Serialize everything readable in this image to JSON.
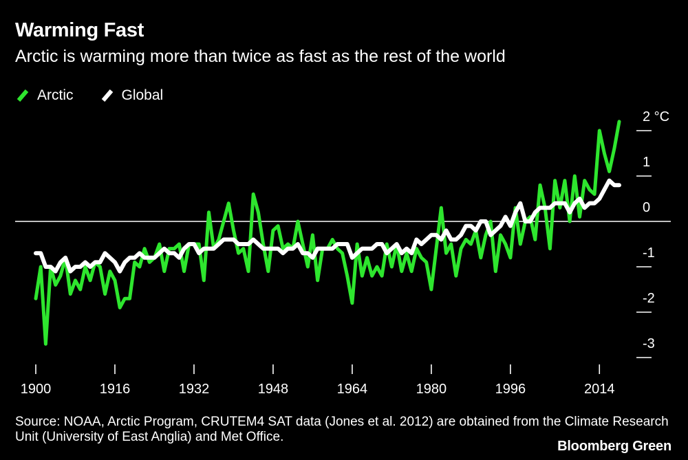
{
  "header": {
    "title": "Warming Fast",
    "subtitle": "Arctic is warming more than twice as fast as the rest of the world"
  },
  "legend": {
    "items": [
      {
        "label": "Arctic",
        "color": "#2ee62e"
      },
      {
        "label": "Global",
        "color": "#ffffff"
      }
    ]
  },
  "footer": {
    "source": "Source: NOAA, Arctic Program, CRUTEM4 SAT data (Jones et al. 2012) are obtained from the Climate Research Unit (University of East Anglia) and Met Office.",
    "brand": "Bloomberg Green"
  },
  "chart_data": {
    "type": "line",
    "title": "Warming Fast",
    "subtitle": "Arctic is warming more than twice as fast as the rest of the world",
    "xlim": [
      1900,
      2018
    ],
    "ylim": [
      -3,
      2
    ],
    "x_ticks": [
      {
        "value": 1900,
        "label": "1900"
      },
      {
        "value": 1916,
        "label": "1916"
      },
      {
        "value": 1932,
        "label": "1932"
      },
      {
        "value": 1948,
        "label": "1948"
      },
      {
        "value": 1964,
        "label": "1964"
      },
      {
        "value": 1980,
        "label": "1980"
      },
      {
        "value": 1996,
        "label": "1996"
      },
      {
        "value": 2014,
        "label": "2014"
      }
    ],
    "y_ticks": [
      {
        "value": 2,
        "label": "2 °C"
      },
      {
        "value": 1,
        "label": "1"
      },
      {
        "value": 0,
        "label": "0"
      },
      {
        "value": -1,
        "label": "-1"
      },
      {
        "value": -2,
        "label": "-2"
      },
      {
        "value": -3,
        "label": "-3"
      }
    ],
    "zero_line": 0,
    "legend_position": "top-left",
    "grid": false,
    "series": [
      {
        "name": "Arctic",
        "color": "#2ee62e",
        "x": [
          1900,
          1901,
          1902,
          1903,
          1904,
          1905,
          1906,
          1907,
          1908,
          1909,
          1910,
          1911,
          1912,
          1913,
          1914,
          1915,
          1916,
          1917,
          1918,
          1919,
          1920,
          1921,
          1922,
          1923,
          1924,
          1925,
          1926,
          1927,
          1928,
          1929,
          1930,
          1931,
          1932,
          1933,
          1934,
          1935,
          1936,
          1937,
          1938,
          1939,
          1940,
          1941,
          1942,
          1943,
          1944,
          1945,
          1946,
          1947,
          1948,
          1949,
          1950,
          1951,
          1952,
          1953,
          1954,
          1955,
          1956,
          1957,
          1958,
          1959,
          1960,
          1961,
          1962,
          1963,
          1964,
          1965,
          1966,
          1967,
          1968,
          1969,
          1970,
          1971,
          1972,
          1973,
          1974,
          1975,
          1976,
          1977,
          1978,
          1979,
          1980,
          1981,
          1982,
          1983,
          1984,
          1985,
          1986,
          1987,
          1988,
          1989,
          1990,
          1991,
          1992,
          1993,
          1994,
          1995,
          1996,
          1997,
          1998,
          1999,
          2000,
          2001,
          2002,
          2003,
          2004,
          2005,
          2006,
          2007,
          2008,
          2009,
          2010,
          2011,
          2012,
          2013,
          2014,
          2015,
          2016,
          2017,
          2018
        ],
        "values": [
          -1.7,
          -1.0,
          -2.7,
          -1.0,
          -1.4,
          -1.2,
          -0.8,
          -1.6,
          -1.3,
          -1.5,
          -1.0,
          -1.3,
          -0.9,
          -1.0,
          -1.6,
          -1.1,
          -1.3,
          -1.9,
          -1.7,
          -1.7,
          -0.9,
          -1.0,
          -0.6,
          -0.9,
          -0.8,
          -0.5,
          -1.1,
          -0.6,
          -0.6,
          -0.5,
          -1.1,
          -0.5,
          -0.5,
          -0.5,
          -1.3,
          0.2,
          -0.6,
          -0.4,
          0.0,
          0.4,
          -0.2,
          -0.7,
          -0.6,
          -1.1,
          0.6,
          0.2,
          -0.5,
          -1.1,
          -0.2,
          -0.1,
          -0.6,
          -0.5,
          -0.6,
          0.0,
          -0.5,
          -1.0,
          -0.3,
          -1.3,
          -0.6,
          -0.6,
          -0.4,
          -0.6,
          -0.7,
          -1.2,
          -1.8,
          -0.5,
          -1.2,
          -0.8,
          -1.2,
          -1.0,
          -1.2,
          -0.5,
          -1.0,
          -0.5,
          -1.1,
          -0.7,
          -1.1,
          -0.6,
          -0.8,
          -0.9,
          -1.5,
          -0.6,
          0.3,
          -0.7,
          -0.5,
          -1.2,
          -0.6,
          -0.4,
          -0.5,
          -0.2,
          -0.8,
          -0.3,
          0.0,
          -1.1,
          -0.3,
          -0.5,
          -0.8,
          0.3,
          -0.5,
          0.0,
          0.1,
          -0.4,
          0.8,
          0.3,
          -0.6,
          0.9,
          0.3,
          0.9,
          0.0,
          1.0,
          0.1,
          0.9,
          0.7,
          0.6,
          2.0,
          1.5,
          1.1,
          1.6,
          2.2
        ],
        "endpoint": {
          "x": 2018,
          "y": 2.2
        }
      },
      {
        "name": "Global",
        "color": "#ffffff",
        "x": [
          1900,
          1901,
          1902,
          1903,
          1904,
          1905,
          1906,
          1907,
          1908,
          1909,
          1910,
          1911,
          1912,
          1913,
          1914,
          1915,
          1916,
          1917,
          1918,
          1919,
          1920,
          1921,
          1922,
          1923,
          1924,
          1925,
          1926,
          1927,
          1928,
          1929,
          1930,
          1931,
          1932,
          1933,
          1934,
          1935,
          1936,
          1937,
          1938,
          1939,
          1940,
          1941,
          1942,
          1943,
          1944,
          1945,
          1946,
          1947,
          1948,
          1949,
          1950,
          1951,
          1952,
          1953,
          1954,
          1955,
          1956,
          1957,
          1958,
          1959,
          1960,
          1961,
          1962,
          1963,
          1964,
          1965,
          1966,
          1967,
          1968,
          1969,
          1970,
          1971,
          1972,
          1973,
          1974,
          1975,
          1976,
          1977,
          1978,
          1979,
          1980,
          1981,
          1982,
          1983,
          1984,
          1985,
          1986,
          1987,
          1988,
          1989,
          1990,
          1991,
          1992,
          1993,
          1994,
          1995,
          1996,
          1997,
          1998,
          1999,
          2000,
          2001,
          2002,
          2003,
          2004,
          2005,
          2006,
          2007,
          2008,
          2009,
          2010,
          2011,
          2012,
          2013,
          2014,
          2015,
          2016,
          2017,
          2018
        ],
        "values": [
          -0.7,
          -0.7,
          -1.0,
          -1.0,
          -1.1,
          -0.9,
          -0.8,
          -1.1,
          -1.0,
          -1.0,
          -0.9,
          -1.0,
          -0.9,
          -0.9,
          -0.7,
          -0.8,
          -0.9,
          -1.1,
          -0.9,
          -0.8,
          -0.8,
          -0.7,
          -0.8,
          -0.8,
          -0.8,
          -0.7,
          -0.6,
          -0.7,
          -0.7,
          -0.8,
          -0.6,
          -0.5,
          -0.5,
          -0.7,
          -0.6,
          -0.6,
          -0.6,
          -0.5,
          -0.4,
          -0.4,
          -0.4,
          -0.5,
          -0.5,
          -0.5,
          -0.4,
          -0.5,
          -0.6,
          -0.6,
          -0.6,
          -0.6,
          -0.7,
          -0.6,
          -0.6,
          -0.5,
          -0.7,
          -0.7,
          -0.8,
          -0.6,
          -0.6,
          -0.6,
          -0.6,
          -0.5,
          -0.5,
          -0.5,
          -0.8,
          -0.7,
          -0.6,
          -0.6,
          -0.6,
          -0.5,
          -0.5,
          -0.7,
          -0.6,
          -0.5,
          -0.7,
          -0.6,
          -0.7,
          -0.4,
          -0.5,
          -0.4,
          -0.3,
          -0.3,
          -0.4,
          -0.2,
          -0.4,
          -0.4,
          -0.3,
          -0.1,
          -0.1,
          -0.2,
          0.0,
          0.0,
          -0.3,
          -0.2,
          -0.1,
          0.1,
          -0.1,
          0.2,
          0.4,
          0.0,
          0.0,
          0.2,
          0.3,
          0.3,
          0.3,
          0.4,
          0.4,
          0.4,
          0.2,
          0.4,
          0.5,
          0.3,
          0.4,
          0.4,
          0.5,
          0.7,
          0.9,
          0.8,
          0.8
        ]
      }
    ]
  }
}
